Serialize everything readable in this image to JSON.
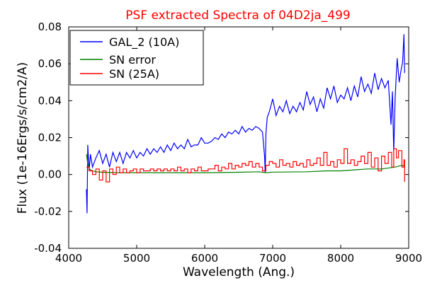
{
  "chart_data": {
    "type": "line",
    "title": "PSF extracted Spectra of 04D2ja_499",
    "title_color": "#ff0000",
    "xlabel": "Wavelength (Ang.)",
    "ylabel": "Flux (1e-16Ergs/s/cm2/A)",
    "xlim": [
      4000,
      9000
    ],
    "ylim": [
      -0.04,
      0.08
    ],
    "x_ticks": [
      "4000",
      "5000",
      "6000",
      "7000",
      "8000",
      "9000"
    ],
    "y_ticks": [
      "-0.04",
      "-0.02",
      "0.00",
      "0.02",
      "0.04",
      "0.06",
      "0.08"
    ],
    "grid": false,
    "legend_position": "top-left",
    "series": [
      {
        "name": "GAL_2 (10A)",
        "color": "#0000ff",
        "step": false,
        "points": [
          [
            4260,
            -0.008
          ],
          [
            4270,
            -0.021
          ],
          [
            4280,
            0.016
          ],
          [
            4300,
            0.002
          ],
          [
            4320,
            0.011
          ],
          [
            4350,
            0.004
          ],
          [
            4400,
            0.009
          ],
          [
            4450,
            0.013
          ],
          [
            4500,
            0.006
          ],
          [
            4550,
            0.011
          ],
          [
            4600,
            0.004
          ],
          [
            4650,
            0.012
          ],
          [
            4700,
            0.007
          ],
          [
            4750,
            0.012
          ],
          [
            4800,
            0.006
          ],
          [
            4850,
            0.012
          ],
          [
            4900,
            0.009
          ],
          [
            4950,
            0.013
          ],
          [
            5000,
            0.009
          ],
          [
            5050,
            0.012
          ],
          [
            5100,
            0.01
          ],
          [
            5150,
            0.014
          ],
          [
            5200,
            0.011
          ],
          [
            5250,
            0.014
          ],
          [
            5300,
            0.012
          ],
          [
            5350,
            0.015
          ],
          [
            5400,
            0.012
          ],
          [
            5450,
            0.016
          ],
          [
            5500,
            0.013
          ],
          [
            5550,
            0.017
          ],
          [
            5600,
            0.014
          ],
          [
            5650,
            0.016
          ],
          [
            5700,
            0.014
          ],
          [
            5750,
            0.019
          ],
          [
            5800,
            0.015
          ],
          [
            5850,
            0.016
          ],
          [
            5900,
            0.016
          ],
          [
            5950,
            0.02
          ],
          [
            6000,
            0.017
          ],
          [
            6050,
            0.017
          ],
          [
            6100,
            0.018
          ],
          [
            6150,
            0.02
          ],
          [
            6200,
            0.019
          ],
          [
            6250,
            0.022
          ],
          [
            6300,
            0.02
          ],
          [
            6350,
            0.023
          ],
          [
            6400,
            0.022
          ],
          [
            6450,
            0.024
          ],
          [
            6500,
            0.022
          ],
          [
            6550,
            0.026
          ],
          [
            6600,
            0.023
          ],
          [
            6650,
            0.025
          ],
          [
            6700,
            0.024
          ],
          [
            6750,
            0.026
          ],
          [
            6800,
            0.025
          ],
          [
            6850,
            0.023
          ],
          [
            6880,
            0.01
          ],
          [
            6890,
            0.001
          ],
          [
            6900,
            0.022
          ],
          [
            6920,
            0.031
          ],
          [
            6950,
            0.034
          ],
          [
            7000,
            0.041
          ],
          [
            7050,
            0.032
          ],
          [
            7100,
            0.037
          ],
          [
            7150,
            0.034
          ],
          [
            7200,
            0.04
          ],
          [
            7250,
            0.033
          ],
          [
            7300,
            0.037
          ],
          [
            7350,
            0.034
          ],
          [
            7400,
            0.039
          ],
          [
            7450,
            0.035
          ],
          [
            7500,
            0.045
          ],
          [
            7550,
            0.038
          ],
          [
            7600,
            0.042
          ],
          [
            7650,
            0.034
          ],
          [
            7700,
            0.041
          ],
          [
            7750,
            0.036
          ],
          [
            7800,
            0.047
          ],
          [
            7850,
            0.041
          ],
          [
            7900,
            0.048
          ],
          [
            7950,
            0.039
          ],
          [
            8000,
            0.043
          ],
          [
            8050,
            0.041
          ],
          [
            8100,
            0.047
          ],
          [
            8150,
            0.04
          ],
          [
            8200,
            0.048
          ],
          [
            8250,
            0.042
          ],
          [
            8300,
            0.053
          ],
          [
            8350,
            0.045
          ],
          [
            8400,
            0.049
          ],
          [
            8450,
            0.044
          ],
          [
            8500,
            0.055
          ],
          [
            8550,
            0.046
          ],
          [
            8600,
            0.052
          ],
          [
            8650,
            0.047
          ],
          [
            8700,
            0.051
          ],
          [
            8740,
            0.027
          ],
          [
            8760,
            0.045
          ],
          [
            8780,
            0.012
          ],
          [
            8800,
            0.041
          ],
          [
            8830,
            0.063
          ],
          [
            8860,
            0.05
          ],
          [
            8880,
            0.055
          ],
          [
            8910,
            0.061
          ],
          [
            8930,
            0.076
          ],
          [
            8940,
            0.055
          ]
        ]
      },
      {
        "name": "SN error",
        "color": "#008000",
        "step": false,
        "points": [
          [
            4260,
            0.011
          ],
          [
            4280,
            0.006
          ],
          [
            4300,
            0.003
          ],
          [
            4350,
            0.002
          ],
          [
            4400,
            0.0015
          ],
          [
            4500,
            0.0012
          ],
          [
            4700,
            0.001
          ],
          [
            5000,
            0.001
          ],
          [
            5500,
            0.001
          ],
          [
            6000,
            0.001
          ],
          [
            6500,
            0.0012
          ],
          [
            6800,
            0.0015
          ],
          [
            6900,
            0.001
          ],
          [
            7000,
            0.0013
          ],
          [
            7500,
            0.0015
          ],
          [
            7800,
            0.002
          ],
          [
            8000,
            0.002
          ],
          [
            8200,
            0.0025
          ],
          [
            8400,
            0.003
          ],
          [
            8600,
            0.003
          ],
          [
            8800,
            0.004
          ],
          [
            8900,
            0.005
          ],
          [
            8940,
            0.0045
          ]
        ]
      },
      {
        "name": "SN (25A)",
        "color": "#ff0000",
        "step": true,
        "points": [
          [
            4260,
            0.004
          ],
          [
            4300,
            0.002
          ],
          [
            4350,
            0.0
          ],
          [
            4400,
            0.003
          ],
          [
            4450,
            -0.003
          ],
          [
            4500,
            0.002
          ],
          [
            4550,
            -0.004
          ],
          [
            4600,
            0.003
          ],
          [
            4650,
            0.0
          ],
          [
            4700,
            0.004
          ],
          [
            4750,
            0.001
          ],
          [
            4800,
            0.003
          ],
          [
            4850,
            0.001
          ],
          [
            4900,
            0.002
          ],
          [
            4950,
            0.003
          ],
          [
            5000,
            0.001
          ],
          [
            5050,
            0.003
          ],
          [
            5100,
            0.002
          ],
          [
            5150,
            0.002
          ],
          [
            5200,
            0.003
          ],
          [
            5250,
            0.002
          ],
          [
            5300,
            0.003
          ],
          [
            5350,
            0.002
          ],
          [
            5400,
            0.003
          ],
          [
            5450,
            0.002
          ],
          [
            5500,
            0.003
          ],
          [
            5550,
            0.002
          ],
          [
            5600,
            0.004
          ],
          [
            5650,
            0.002
          ],
          [
            5700,
            0.003
          ],
          [
            5750,
            0.001
          ],
          [
            5800,
            0.003
          ],
          [
            5850,
            0.002
          ],
          [
            5900,
            0.004
          ],
          [
            5950,
            0.002
          ],
          [
            6000,
            0.002
          ],
          [
            6050,
            0.003
          ],
          [
            6100,
            0.003
          ],
          [
            6150,
            0.005
          ],
          [
            6200,
            0.002
          ],
          [
            6250,
            0.004
          ],
          [
            6300,
            0.003
          ],
          [
            6350,
            0.006
          ],
          [
            6400,
            0.003
          ],
          [
            6450,
            0.005
          ],
          [
            6500,
            0.004
          ],
          [
            6550,
            0.006
          ],
          [
            6600,
            0.005
          ],
          [
            6650,
            0.007
          ],
          [
            6700,
            0.004
          ],
          [
            6750,
            0.006
          ],
          [
            6800,
            0.004
          ],
          [
            6850,
            0.002
          ],
          [
            6900,
            0.005
          ],
          [
            6950,
            0.007
          ],
          [
            7000,
            0.006
          ],
          [
            7050,
            0.004
          ],
          [
            7100,
            0.008
          ],
          [
            7150,
            0.005
          ],
          [
            7200,
            0.006
          ],
          [
            7250,
            0.004
          ],
          [
            7300,
            0.007
          ],
          [
            7350,
            0.005
          ],
          [
            7400,
            0.006
          ],
          [
            7450,
            0.004
          ],
          [
            7500,
            0.008
          ],
          [
            7550,
            0.005
          ],
          [
            7600,
            0.006
          ],
          [
            7650,
            0.009
          ],
          [
            7700,
            0.005
          ],
          [
            7750,
            0.012
          ],
          [
            7800,
            0.005
          ],
          [
            7850,
            0.007
          ],
          [
            7900,
            0.004
          ],
          [
            7950,
            0.008
          ],
          [
            8000,
            0.006
          ],
          [
            8050,
            0.014
          ],
          [
            8100,
            0.006
          ],
          [
            8150,
            0.008
          ],
          [
            8200,
            0.005
          ],
          [
            8250,
            0.007
          ],
          [
            8300,
            0.01
          ],
          [
            8350,
            0.006
          ],
          [
            8400,
            0.012
          ],
          [
            8450,
            0.004
          ],
          [
            8500,
            0.009
          ],
          [
            8550,
            0.002
          ],
          [
            8600,
            0.01
          ],
          [
            8650,
            0.006
          ],
          [
            8700,
            0.012
          ],
          [
            8750,
            0.004
          ],
          [
            8780,
            0.014
          ],
          [
            8820,
            0.009
          ],
          [
            8850,
            0.013
          ],
          [
            8900,
            0.004
          ],
          [
            8930,
            0.008
          ],
          [
            8940,
            -0.004
          ]
        ]
      }
    ]
  }
}
